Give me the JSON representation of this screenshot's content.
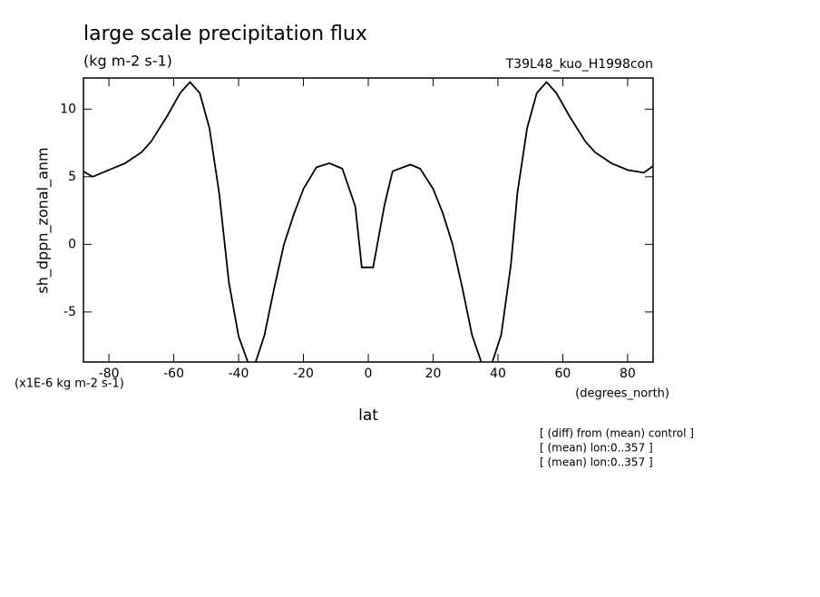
{
  "chart_data": {
    "type": "line",
    "title": "large scale precipitation flux",
    "subtitle": "(kg m-2 s-1)",
    "experiment": "T39L48_kuo_H1998con",
    "x_label": "lat",
    "y_label": "sh_dppn_zonal_anm",
    "y_units": "(x1E-6 kg m-2 s-1)",
    "x_units": "(degrees_north)",
    "notes": [
      "[ (diff) from (mean) control ]",
      "[ (mean) lon:0..357 ]",
      "[ (mean) lon:0..357 ]"
    ],
    "color": "#000000",
    "x": [
      -87.9,
      -85,
      -80,
      -75,
      -70,
      -67,
      -62,
      -58,
      -55,
      -52,
      -49,
      -46,
      -43,
      -40,
      -37,
      -35,
      -32,
      -29,
      -26,
      -23,
      -20,
      -16,
      -12,
      -8,
      -4,
      -2,
      1.5,
      5,
      7.5,
      13,
      16,
      20,
      23,
      26,
      29,
      32,
      35,
      38,
      41,
      44,
      46,
      49,
      52,
      55,
      58,
      62,
      67,
      70,
      75,
      80,
      85,
      87.9
    ],
    "values": [
      5.4,
      5.0,
      5.5,
      6.0,
      6.8,
      7.6,
      9.5,
      11.2,
      12.0,
      11.2,
      8.6,
      3.8,
      -2.8,
      -6.8,
      -8.8,
      -8.9,
      -6.7,
      -3.2,
      0,
      2.2,
      4.1,
      5.7,
      6.0,
      5.6,
      2.8,
      -1.7,
      -1.7,
      2.9,
      5.4,
      5.9,
      5.6,
      4.1,
      2.3,
      0,
      -3.2,
      -6.7,
      -8.8,
      -8.9,
      -6.7,
      -1.5,
      3.8,
      8.6,
      11.2,
      12.0,
      11.2,
      9.5,
      7.6,
      6.8,
      6.0,
      5.5,
      5.3,
      5.8
    ],
    "xlim": [
      -87.86,
      87.86
    ],
    "ylim": [
      -8.7,
      12.3
    ],
    "xticks": [
      -80,
      -60,
      -40,
      -20,
      0,
      20,
      40,
      60,
      80
    ],
    "yticks": [
      -5,
      0,
      5,
      10
    ]
  }
}
